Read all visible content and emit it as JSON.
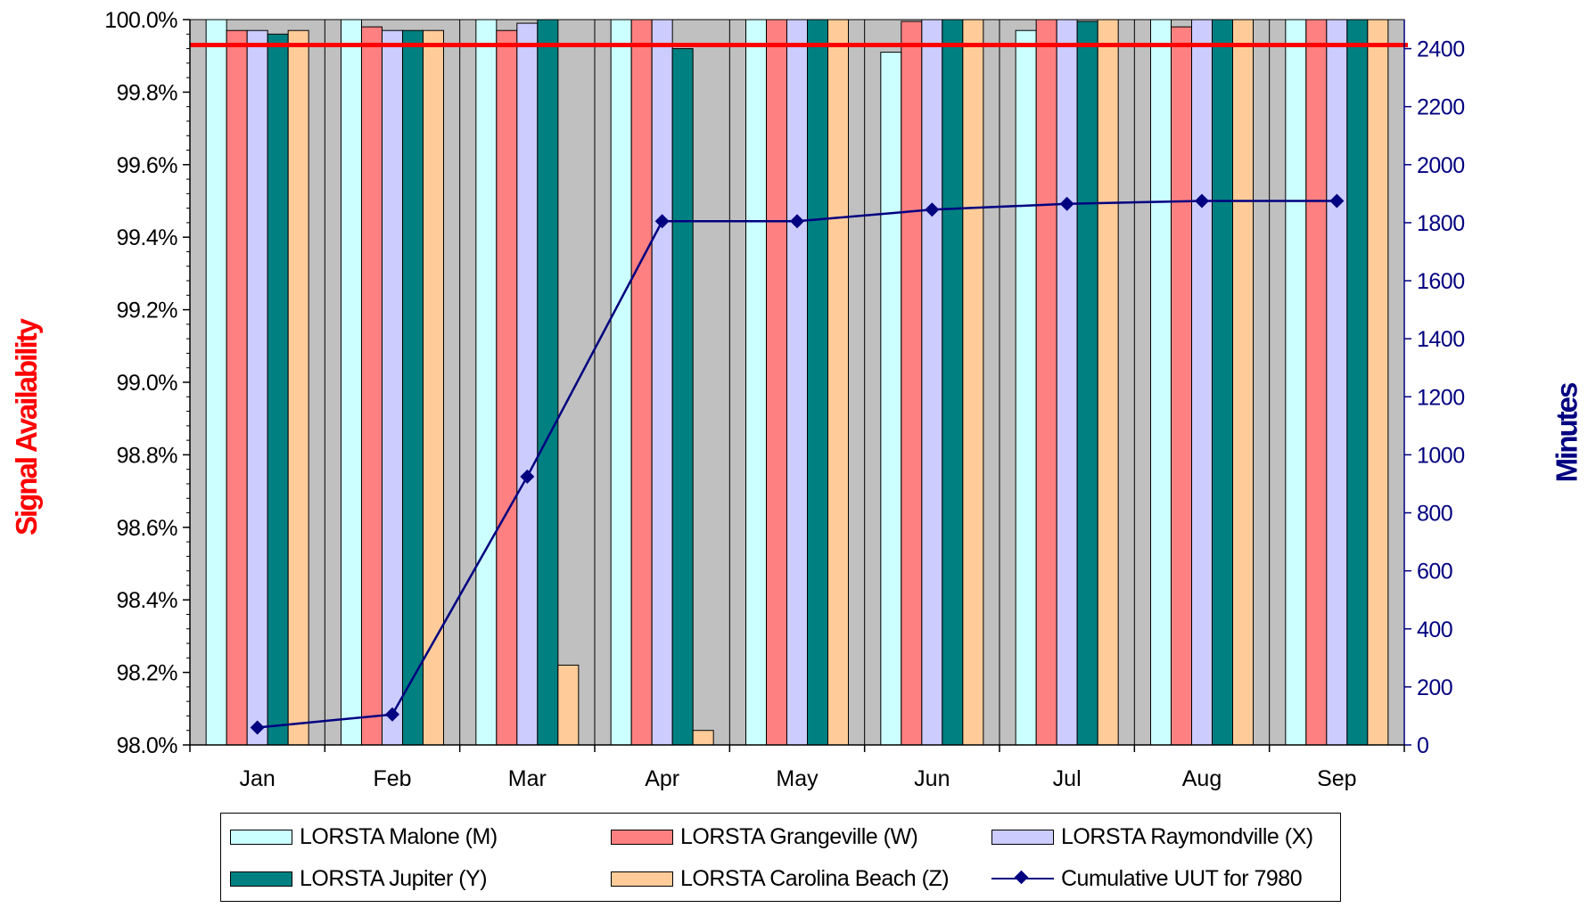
{
  "chart_data": {
    "type": "bar",
    "categories": [
      "Jan",
      "Feb",
      "Mar",
      "Apr",
      "May",
      "Jun",
      "Jul",
      "Aug",
      "Sep"
    ],
    "ylabel": "Signal Availability",
    "y2label": "Minutes",
    "ylim": [
      98.0,
      100.0
    ],
    "y_ticks": [
      "98.0%",
      "98.2%",
      "98.4%",
      "98.6%",
      "98.8%",
      "99.0%",
      "99.2%",
      "99.4%",
      "99.6%",
      "99.8%",
      "100.0%"
    ],
    "y2lim": [
      0,
      2500
    ],
    "y2_ticks": [
      "0",
      "200",
      "400",
      "600",
      "800",
      "1000",
      "1200",
      "1400",
      "1600",
      "1800",
      "2000",
      "2200",
      "2400"
    ],
    "threshold": {
      "value": 99.93,
      "color": "#ff0000"
    },
    "background_color": "#c0c0c0",
    "grid": "vertical",
    "legend_position": "bottom",
    "series": [
      {
        "name": "LORSTA Malone (M)",
        "color": "#ccffff",
        "values": [
          100.0,
          100.0,
          100.0,
          100.0,
          100.0,
          99.91,
          99.97,
          100.0,
          100.0
        ]
      },
      {
        "name": "LORSTA Grangeville (W)",
        "color": "#ff8080",
        "values": [
          99.97,
          99.98,
          99.97,
          100.0,
          100.0,
          99.995,
          100.0,
          99.98,
          100.0
        ]
      },
      {
        "name": "LORSTA Raymondville (X)",
        "color": "#ccccff",
        "values": [
          99.97,
          99.97,
          99.99,
          100.0,
          100.0,
          100.0,
          100.0,
          100.0,
          100.0
        ]
      },
      {
        "name": "LORSTA Jupiter (Y)",
        "color": "#008080",
        "values": [
          99.96,
          99.97,
          100.0,
          99.92,
          100.0,
          100.0,
          99.995,
          100.0,
          100.0
        ]
      },
      {
        "name": "LORSTA Carolina Beach (Z)",
        "color": "#ffcc99",
        "values": [
          99.97,
          99.97,
          98.22,
          98.04,
          100.0,
          100.0,
          100.0,
          100.0,
          100.0
        ]
      }
    ],
    "line_series": {
      "name": "Cumulative UUT for 7980",
      "color": "#000080",
      "axis": "secondary",
      "values": [
        60,
        105,
        925,
        1805,
        1805,
        1845,
        1865,
        1875,
        1875
      ]
    }
  }
}
